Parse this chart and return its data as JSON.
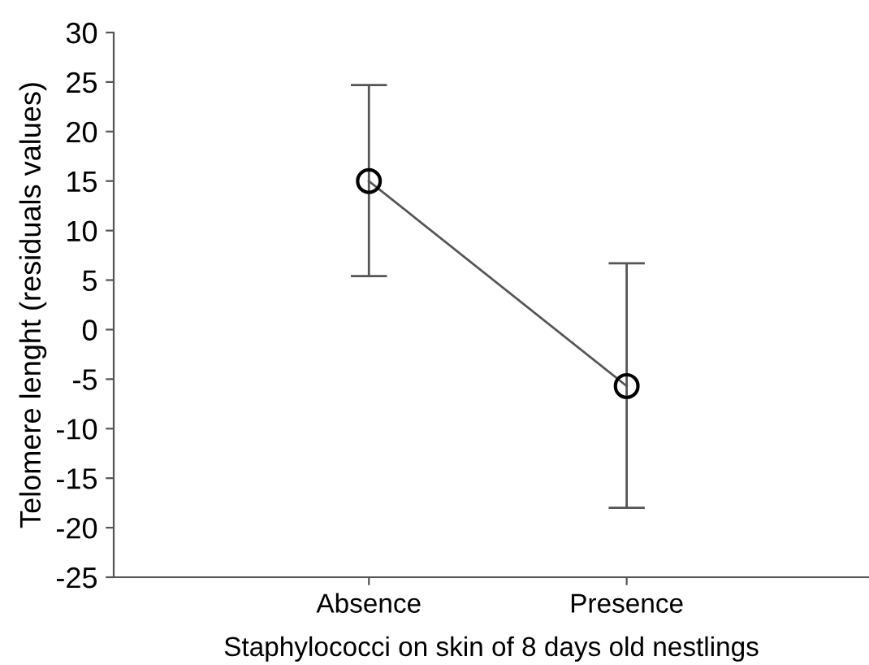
{
  "chart_data": {
    "type": "line",
    "xlabel": "Staphylococci on skin of 8 days old nestlings",
    "ylabel": "Telomere lenght (residuals values)",
    "categories": [
      "Absence",
      "Presence"
    ],
    "series": [
      {
        "color": "#555555",
        "values": [
          15.0,
          -5.7
        ],
        "errors": [
          [
            5.4,
            24.7
          ],
          [
            -18.0,
            6.7
          ]
        ]
      }
    ],
    "marker": "circle",
    "line_style": "solid",
    "ylim": [
      -25,
      30
    ],
    "yticks": [
      -25,
      -20,
      -15,
      -10,
      -5,
      0,
      5,
      10,
      15,
      20,
      25,
      30
    ],
    "grid": false,
    "legend": false
  }
}
